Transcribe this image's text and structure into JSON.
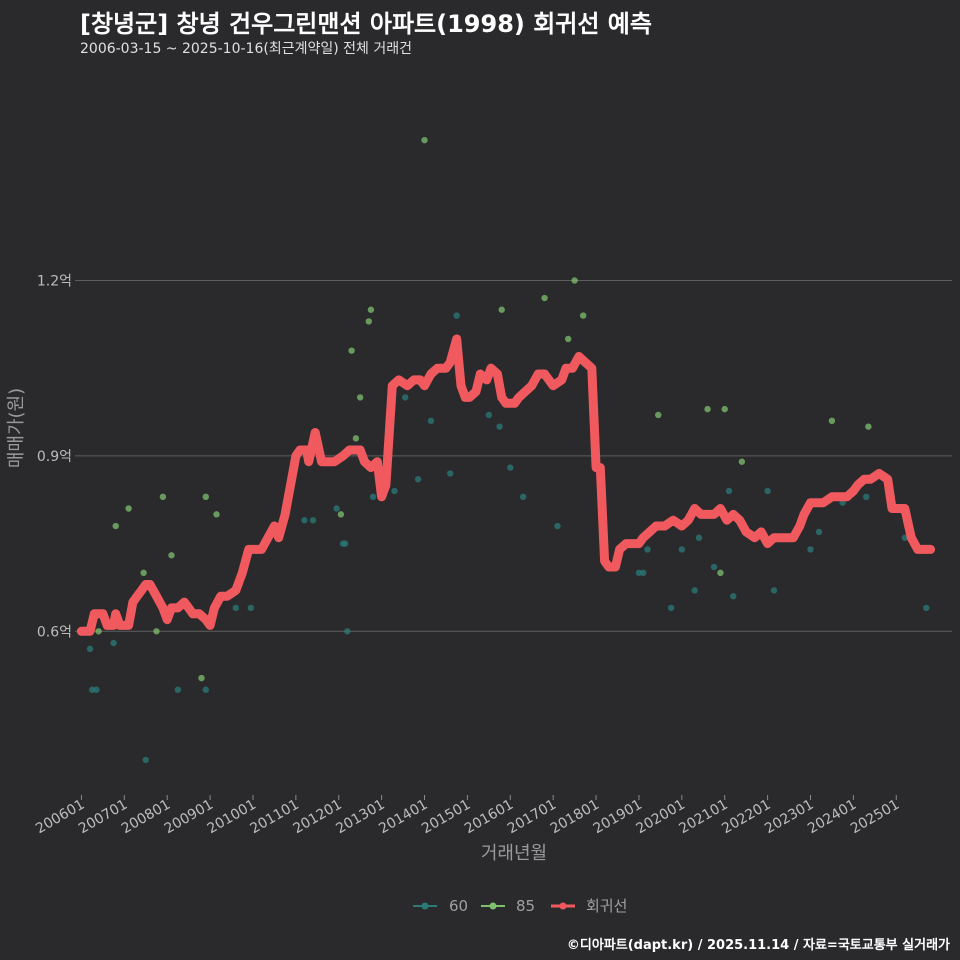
{
  "title": "[창녕군] 창녕 건우그린맨션 아파트(1998) 회귀선 예측",
  "subtitle": "2006-03-15 ~ 2025-10-16(최근계약일) 전체 거래건",
  "footer": "©디아파트(dapt.kr) / 2025.11.14 / 자료=국토교통부 실거래가",
  "colors": {
    "background": "#2a2a2c",
    "series_60": "#2a7b78",
    "series_85": "#7fc06e",
    "regression": "#f05a5e",
    "grid": "#5e5e5e"
  },
  "chart_data": {
    "type": "scatter",
    "title": "[창녕군] 창녕 건우그린맨션 아파트(1998) 회귀선 예측",
    "xlabel": "거래년월",
    "ylabel": "매매가(원)",
    "x_range": [
      2005.85,
      2026.3
    ],
    "ylim": [
      0.32,
      1.56
    ],
    "y_ticks": [
      {
        "value": 0.6,
        "label": "0.6억"
      },
      {
        "value": 0.9,
        "label": "0.9억"
      },
      {
        "value": 1.2,
        "label": "1.2억"
      }
    ],
    "x_ticks": [
      {
        "value": 2006.0,
        "label": "200601"
      },
      {
        "value": 2007.0,
        "label": "200701"
      },
      {
        "value": 2008.0,
        "label": "200801"
      },
      {
        "value": 2009.0,
        "label": "200901"
      },
      {
        "value": 2010.0,
        "label": "201001"
      },
      {
        "value": 2011.0,
        "label": "201101"
      },
      {
        "value": 2012.0,
        "label": "201201"
      },
      {
        "value": 2013.0,
        "label": "201301"
      },
      {
        "value": 2014.0,
        "label": "201401"
      },
      {
        "value": 2015.0,
        "label": "201501"
      },
      {
        "value": 2016.0,
        "label": "201601"
      },
      {
        "value": 2017.0,
        "label": "201701"
      },
      {
        "value": 2018.0,
        "label": "201801"
      },
      {
        "value": 2019.0,
        "label": "201901"
      },
      {
        "value": 2020.0,
        "label": "202001"
      },
      {
        "value": 2021.0,
        "label": "202101"
      },
      {
        "value": 2022.0,
        "label": "202201"
      },
      {
        "value": 2023.0,
        "label": "202301"
      },
      {
        "value": 2024.0,
        "label": "202401"
      },
      {
        "value": 2025.0,
        "label": "202501"
      }
    ],
    "legend": [
      {
        "key": "60",
        "label": "60"
      },
      {
        "key": "85",
        "label": "85"
      },
      {
        "key": "regression",
        "label": "회귀선"
      }
    ],
    "series": [
      {
        "name": "60",
        "type": "scatter",
        "points": [
          [
            2006.2,
            0.57
          ],
          [
            2006.25,
            0.5
          ],
          [
            2006.35,
            0.5
          ],
          [
            2006.75,
            0.58
          ],
          [
            2007.5,
            0.38
          ],
          [
            2008.25,
            0.5
          ],
          [
            2008.9,
            0.5
          ],
          [
            2009.6,
            0.64
          ],
          [
            2009.95,
            0.64
          ],
          [
            2011.2,
            0.79
          ],
          [
            2011.4,
            0.79
          ],
          [
            2011.95,
            0.81
          ],
          [
            2012.1,
            0.75
          ],
          [
            2012.15,
            0.75
          ],
          [
            2012.2,
            0.6
          ],
          [
            2012.8,
            0.83
          ],
          [
            2013.3,
            0.84
          ],
          [
            2013.55,
            1.0
          ],
          [
            2013.85,
            0.86
          ],
          [
            2014.15,
            0.96
          ],
          [
            2014.6,
            0.87
          ],
          [
            2014.75,
            1.14
          ],
          [
            2015.5,
            0.97
          ],
          [
            2015.75,
            0.95
          ],
          [
            2016.0,
            0.88
          ],
          [
            2016.3,
            0.83
          ],
          [
            2017.1,
            0.78
          ],
          [
            2019.0,
            0.7
          ],
          [
            2019.1,
            0.7
          ],
          [
            2019.2,
            0.74
          ],
          [
            2019.75,
            0.64
          ],
          [
            2020.0,
            0.74
          ],
          [
            2020.3,
            0.67
          ],
          [
            2020.4,
            0.76
          ],
          [
            2020.75,
            0.71
          ],
          [
            2021.1,
            0.84
          ],
          [
            2021.2,
            0.66
          ],
          [
            2022.0,
            0.84
          ],
          [
            2022.15,
            0.67
          ],
          [
            2023.0,
            0.74
          ],
          [
            2023.2,
            0.77
          ],
          [
            2023.75,
            0.82
          ],
          [
            2024.3,
            0.83
          ],
          [
            2024.9,
            0.83
          ],
          [
            2025.2,
            0.76
          ],
          [
            2025.7,
            0.64
          ]
        ]
      },
      {
        "name": "85",
        "type": "scatter",
        "points": [
          [
            2006.4,
            0.6
          ],
          [
            2006.8,
            0.78
          ],
          [
            2007.1,
            0.81
          ],
          [
            2007.45,
            0.7
          ],
          [
            2007.75,
            0.6
          ],
          [
            2007.9,
            0.83
          ],
          [
            2008.1,
            0.73
          ],
          [
            2008.8,
            0.52
          ],
          [
            2008.9,
            0.83
          ],
          [
            2009.15,
            0.8
          ],
          [
            2012.05,
            0.8
          ],
          [
            2012.3,
            1.08
          ],
          [
            2012.4,
            0.93
          ],
          [
            2012.5,
            1.0
          ],
          [
            2012.7,
            1.13
          ],
          [
            2012.75,
            1.15
          ],
          [
            2014.0,
            1.44
          ],
          [
            2015.8,
            1.15
          ],
          [
            2016.8,
            1.17
          ],
          [
            2017.35,
            1.1
          ],
          [
            2017.5,
            1.2
          ],
          [
            2017.7,
            1.14
          ],
          [
            2019.45,
            0.97
          ],
          [
            2020.6,
            0.98
          ],
          [
            2020.9,
            0.7
          ],
          [
            2021.0,
            0.98
          ],
          [
            2021.4,
            0.89
          ],
          [
            2023.5,
            0.96
          ],
          [
            2024.35,
            0.95
          ]
        ]
      },
      {
        "name": "회귀선",
        "type": "line",
        "points": [
          [
            2006.0,
            0.6
          ],
          [
            2006.2,
            0.6
          ],
          [
            2006.3,
            0.63
          ],
          [
            2006.5,
            0.63
          ],
          [
            2006.6,
            0.61
          ],
          [
            2006.75,
            0.61
          ],
          [
            2006.8,
            0.63
          ],
          [
            2006.9,
            0.61
          ],
          [
            2007.0,
            0.61
          ],
          [
            2007.1,
            0.61
          ],
          [
            2007.2,
            0.65
          ],
          [
            2007.3,
            0.66
          ],
          [
            2007.4,
            0.67
          ],
          [
            2007.5,
            0.68
          ],
          [
            2007.6,
            0.68
          ],
          [
            2007.75,
            0.66
          ],
          [
            2007.9,
            0.64
          ],
          [
            2008.0,
            0.62
          ],
          [
            2008.1,
            0.64
          ],
          [
            2008.25,
            0.64
          ],
          [
            2008.4,
            0.65
          ],
          [
            2008.6,
            0.63
          ],
          [
            2008.75,
            0.63
          ],
          [
            2008.9,
            0.62
          ],
          [
            2009.0,
            0.61
          ],
          [
            2009.1,
            0.64
          ],
          [
            2009.25,
            0.66
          ],
          [
            2009.4,
            0.66
          ],
          [
            2009.6,
            0.67
          ],
          [
            2009.75,
            0.7
          ],
          [
            2009.9,
            0.74
          ],
          [
            2010.0,
            0.74
          ],
          [
            2010.2,
            0.74
          ],
          [
            2010.35,
            0.76
          ],
          [
            2010.5,
            0.78
          ],
          [
            2010.6,
            0.76
          ],
          [
            2010.75,
            0.8
          ],
          [
            2010.9,
            0.86
          ],
          [
            2011.0,
            0.9
          ],
          [
            2011.1,
            0.91
          ],
          [
            2011.25,
            0.91
          ],
          [
            2011.3,
            0.89
          ],
          [
            2011.45,
            0.94
          ],
          [
            2011.6,
            0.89
          ],
          [
            2011.75,
            0.89
          ],
          [
            2011.9,
            0.89
          ],
          [
            2012.1,
            0.9
          ],
          [
            2012.25,
            0.91
          ],
          [
            2012.4,
            0.91
          ],
          [
            2012.5,
            0.91
          ],
          [
            2012.6,
            0.89
          ],
          [
            2012.75,
            0.88
          ],
          [
            2012.9,
            0.89
          ],
          [
            2013.0,
            0.83
          ],
          [
            2013.1,
            0.85
          ],
          [
            2013.25,
            1.02
          ],
          [
            2013.4,
            1.03
          ],
          [
            2013.6,
            1.02
          ],
          [
            2013.75,
            1.03
          ],
          [
            2013.9,
            1.03
          ],
          [
            2014.0,
            1.02
          ],
          [
            2014.15,
            1.04
          ],
          [
            2014.3,
            1.05
          ],
          [
            2014.5,
            1.05
          ],
          [
            2014.6,
            1.06
          ],
          [
            2014.75,
            1.1
          ],
          [
            2014.85,
            1.02
          ],
          [
            2014.95,
            1.0
          ],
          [
            2015.05,
            1.0
          ],
          [
            2015.2,
            1.01
          ],
          [
            2015.3,
            1.04
          ],
          [
            2015.45,
            1.03
          ],
          [
            2015.55,
            1.05
          ],
          [
            2015.7,
            1.04
          ],
          [
            2015.8,
            1.0
          ],
          [
            2015.9,
            0.99
          ],
          [
            2016.0,
            0.99
          ],
          [
            2016.1,
            0.99
          ],
          [
            2016.2,
            1.0
          ],
          [
            2016.35,
            1.01
          ],
          [
            2016.5,
            1.02
          ],
          [
            2016.65,
            1.04
          ],
          [
            2016.8,
            1.04
          ],
          [
            2017.0,
            1.02
          ],
          [
            2017.2,
            1.03
          ],
          [
            2017.3,
            1.05
          ],
          [
            2017.45,
            1.05
          ],
          [
            2017.6,
            1.07
          ],
          [
            2017.75,
            1.06
          ],
          [
            2017.9,
            1.05
          ],
          [
            2018.0,
            0.88
          ],
          [
            2018.1,
            0.88
          ],
          [
            2018.2,
            0.72
          ],
          [
            2018.3,
            0.71
          ],
          [
            2018.45,
            0.71
          ],
          [
            2018.55,
            0.74
          ],
          [
            2018.7,
            0.75
          ],
          [
            2018.8,
            0.75
          ],
          [
            2019.0,
            0.75
          ],
          [
            2019.1,
            0.76
          ],
          [
            2019.25,
            0.77
          ],
          [
            2019.4,
            0.78
          ],
          [
            2019.6,
            0.78
          ],
          [
            2019.8,
            0.79
          ],
          [
            2020.0,
            0.78
          ],
          [
            2020.15,
            0.79
          ],
          [
            2020.3,
            0.81
          ],
          [
            2020.45,
            0.8
          ],
          [
            2020.6,
            0.8
          ],
          [
            2020.75,
            0.8
          ],
          [
            2020.9,
            0.81
          ],
          [
            2021.05,
            0.79
          ],
          [
            2021.2,
            0.8
          ],
          [
            2021.35,
            0.79
          ],
          [
            2021.5,
            0.77
          ],
          [
            2021.7,
            0.76
          ],
          [
            2021.85,
            0.77
          ],
          [
            2022.0,
            0.75
          ],
          [
            2022.15,
            0.76
          ],
          [
            2022.3,
            0.76
          ],
          [
            2022.45,
            0.76
          ],
          [
            2022.6,
            0.76
          ],
          [
            2022.75,
            0.78
          ],
          [
            2022.85,
            0.8
          ],
          [
            2023.0,
            0.82
          ],
          [
            2023.15,
            0.82
          ],
          [
            2023.3,
            0.82
          ],
          [
            2023.5,
            0.83
          ],
          [
            2023.7,
            0.83
          ],
          [
            2023.85,
            0.83
          ],
          [
            2024.0,
            0.84
          ],
          [
            2024.1,
            0.85
          ],
          [
            2024.25,
            0.86
          ],
          [
            2024.4,
            0.86
          ],
          [
            2024.6,
            0.87
          ],
          [
            2024.8,
            0.86
          ],
          [
            2024.9,
            0.81
          ],
          [
            2025.05,
            0.81
          ],
          [
            2025.2,
            0.81
          ],
          [
            2025.35,
            0.76
          ],
          [
            2025.5,
            0.74
          ],
          [
            2025.7,
            0.74
          ],
          [
            2025.8,
            0.74
          ]
        ]
      }
    ]
  }
}
